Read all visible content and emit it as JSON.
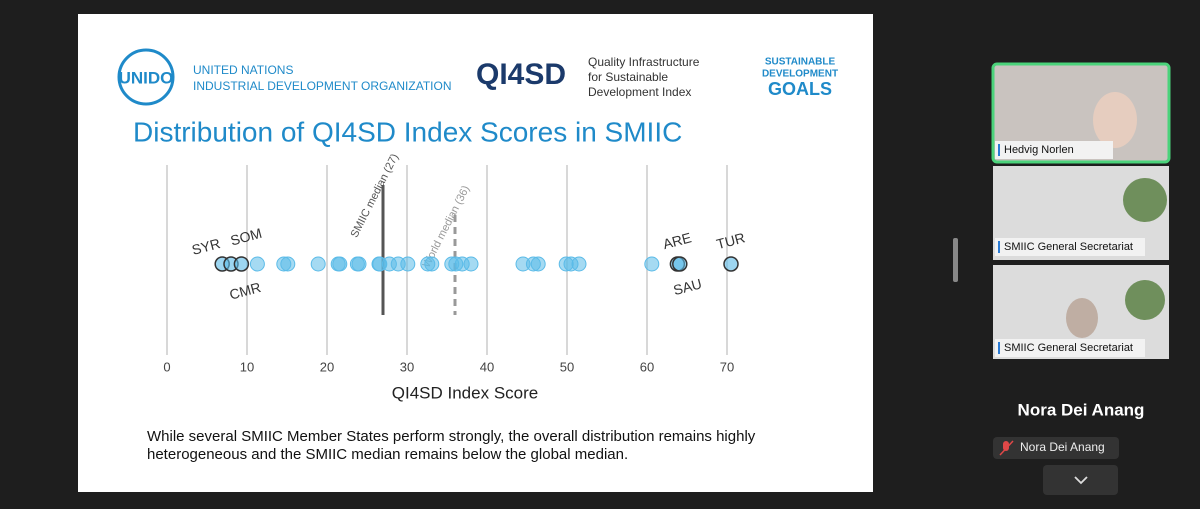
{
  "meeting": {
    "participants": [
      {
        "name": "Hedvig Norlen"
      },
      {
        "name": "SMIIC General Secretariat"
      },
      {
        "name": "SMIIC General Secretariat"
      }
    ],
    "active_speaker": "Nora Dei Anang",
    "muted_name": "Nora Dei Anang"
  },
  "slide": {
    "unido_logo": "UNIDO",
    "org_line1": "UNITED NATIONS",
    "org_line2": "INDUSTRIAL DEVELOPMENT ORGANIZATION",
    "qi4sd_logo": "QI4SD",
    "qi4sd_line1": "Quality Infrastructure",
    "qi4sd_line2": "for Sustainable",
    "qi4sd_line3": "Development Index",
    "sdg_line1": "SUSTAINABLE",
    "sdg_line2": "DEVELOPMENT",
    "sdg_line3": "GOALS",
    "caption_line1": "While several SMIIC Member States perform strongly, the overall distribution remains highly",
    "caption_line2": "heterogeneous and the SMIIC median remains below the global median."
  },
  "chart_data": {
    "type": "strip",
    "title": "Distribution of QI4SD Index Scores in SMIIC",
    "x_label": "QI4SD Index Score",
    "xlim": [
      0,
      70
    ],
    "xticks": [
      0,
      10,
      20,
      30,
      40,
      50,
      60,
      70
    ],
    "grid": true,
    "color": "#5bbbe8",
    "values": [
      11.3,
      14.6,
      15.1,
      18.9,
      21.4,
      21.6,
      23.8,
      24,
      26.5,
      26.6,
      27.8,
      28.9,
      30.1,
      32.6,
      33.1,
      35.6,
      36.1,
      36.9,
      38,
      44.5,
      45.8,
      46.4,
      49.9,
      50.5,
      51.5,
      60.6
    ],
    "labeled_points": [
      {
        "name": "SYR",
        "value": 6.9
      },
      {
        "name": "SOM",
        "value": 8
      },
      {
        "name": "CMR",
        "value": 9.3
      },
      {
        "name": "ARE",
        "value": 63.8
      },
      {
        "name": "SAU",
        "value": 64.1
      },
      {
        "name": "TUR",
        "value": 70.5
      }
    ],
    "medians": [
      {
        "label": "SMIIC median (27)",
        "value": 27,
        "color": "#555555",
        "style": "solid"
      },
      {
        "label": "World median (36)",
        "value": 36,
        "color": "#999999",
        "style": "dashed"
      }
    ]
  }
}
